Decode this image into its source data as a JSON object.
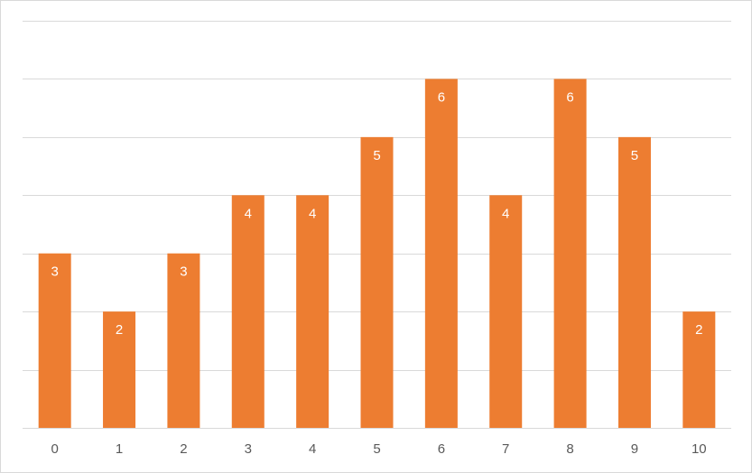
{
  "chart_data": {
    "type": "bar",
    "categories": [
      "0",
      "1",
      "2",
      "3",
      "4",
      "5",
      "6",
      "7",
      "8",
      "9",
      "10"
    ],
    "values": [
      3,
      2,
      3,
      4,
      4,
      5,
      6,
      4,
      6,
      5,
      2
    ],
    "color": "#ed7d31",
    "ylim": [
      0,
      7
    ],
    "yticks": [
      0,
      1,
      2,
      3,
      4,
      5,
      6,
      7
    ],
    "grid": true
  }
}
